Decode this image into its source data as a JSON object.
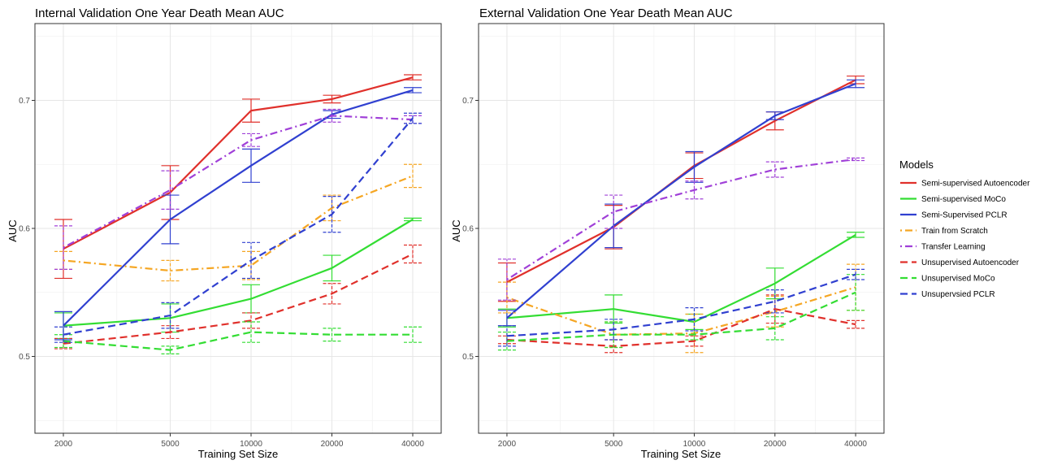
{
  "legend": {
    "title": "Models",
    "entries": [
      {
        "name": "Semi-supervised Autoencoder",
        "color": "#e0302b",
        "dash": "solid"
      },
      {
        "name": "Semi-supervised MoCo",
        "color": "#33dd33",
        "dash": "solid"
      },
      {
        "name": "Semi-Supervised PCLR",
        "color": "#3040d0",
        "dash": "solid"
      },
      {
        "name": "Train from Scratch",
        "color": "#f5a623",
        "dash": "dotdash"
      },
      {
        "name": "Transfer Learning",
        "color": "#a040d8",
        "dash": "dotdash"
      },
      {
        "name": "Unsupervised Autoencoder",
        "color": "#e0302b",
        "dash": "dashed"
      },
      {
        "name": "Unsupervised MoCo",
        "color": "#33dd33",
        "dash": "dashed"
      },
      {
        "name": "Unsupervsied PCLR",
        "color": "#3040d0",
        "dash": "dashed"
      }
    ]
  },
  "chart_data": [
    {
      "type": "line",
      "title": "Internal Validation One Year Death Mean AUC",
      "xlabel": "Training Set Size",
      "ylabel": "AUC",
      "x_scale": "log",
      "categories": [
        "2000",
        "5000",
        "10000",
        "20000",
        "40000"
      ],
      "x": [
        2000,
        5000,
        10000,
        20000,
        40000
      ],
      "ylim": [
        0.44,
        0.76
      ],
      "yticks": [
        "0.5",
        "0.6",
        "0.7"
      ],
      "grid": true,
      "series": [
        {
          "name": "Semi-supervised Autoencoder",
          "values": [
            0.584,
            0.628,
            0.692,
            0.701,
            0.718
          ],
          "err": [
            0.023,
            0.021,
            0.009,
            0.003,
            0.002
          ]
        },
        {
          "name": "Semi-supervised MoCo",
          "values": [
            0.524,
            0.53,
            0.545,
            0.569,
            0.607
          ],
          "err": [
            0.01,
            0.011,
            0.011,
            0.01,
            0.001
          ]
        },
        {
          "name": "Semi-Supervised PCLR",
          "values": [
            0.524,
            0.607,
            0.649,
            0.689,
            0.708
          ],
          "err": [
            0.011,
            0.019,
            0.013,
            0.003,
            0.002
          ]
        },
        {
          "name": "Train from Scratch",
          "values": [
            0.575,
            0.567,
            0.571,
            0.616,
            0.641
          ],
          "err": [
            0.007,
            0.008,
            0.011,
            0.01,
            0.009
          ]
        },
        {
          "name": "Transfer Learning",
          "values": [
            0.585,
            0.63,
            0.669,
            0.688,
            0.685
          ],
          "err": [
            0.017,
            0.015,
            0.005,
            0.005,
            0.003
          ]
        },
        {
          "name": "Unsupervised Autoencoder",
          "values": [
            0.51,
            0.519,
            0.528,
            0.549,
            0.58
          ],
          "err": [
            0.004,
            0.005,
            0.006,
            0.008,
            0.007
          ]
        },
        {
          "name": "Unsupervised MoCo",
          "values": [
            0.512,
            0.505,
            0.519,
            0.517,
            0.517
          ],
          "err": [
            0.005,
            0.003,
            0.008,
            0.005,
            0.006
          ]
        },
        {
          "name": "Unsupervsied PCLR",
          "values": [
            0.517,
            0.532,
            0.575,
            0.611,
            0.686
          ],
          "err": [
            0.006,
            0.01,
            0.014,
            0.014,
            0.004
          ]
        }
      ]
    },
    {
      "type": "line",
      "title": "External Validation One Year Death Mean AUC",
      "xlabel": "Training Set Size",
      "ylabel": "AUC",
      "x_scale": "log",
      "categories": [
        "2000",
        "5000",
        "10000",
        "20000",
        "40000"
      ],
      "x": [
        2000,
        5000,
        10000,
        20000,
        40000
      ],
      "ylim": [
        0.44,
        0.76
      ],
      "yticks": [
        "0.5",
        "0.6",
        "0.7"
      ],
      "grid": true,
      "series": [
        {
          "name": "Semi-supervised Autoencoder",
          "values": [
            0.558,
            0.601,
            0.649,
            0.684,
            0.716
          ],
          "err": [
            0.015,
            0.017,
            0.01,
            0.007,
            0.003
          ]
        },
        {
          "name": "Semi-supervised MoCo",
          "values": [
            0.53,
            0.537,
            0.527,
            0.557,
            0.595
          ],
          "err": [
            0.007,
            0.011,
            0.006,
            0.012,
            0.002
          ]
        },
        {
          "name": "Semi-Supervised PCLR",
          "values": [
            0.53,
            0.602,
            0.648,
            0.688,
            0.713
          ],
          "err": [
            0.006,
            0.017,
            0.012,
            0.003,
            0.003
          ]
        },
        {
          "name": "Train from Scratch",
          "values": [
            0.546,
            0.517,
            0.518,
            0.535,
            0.554
          ],
          "err": [
            0.012,
            0.01,
            0.015,
            0.012,
            0.018
          ]
        },
        {
          "name": "Transfer Learning",
          "values": [
            0.56,
            0.613,
            0.63,
            0.646,
            0.654
          ],
          "err": [
            0.016,
            0.013,
            0.007,
            0.006,
            0.001
          ]
        },
        {
          "name": "Unsupervised Autoencoder",
          "values": [
            0.513,
            0.508,
            0.512,
            0.537,
            0.525
          ],
          "err": [
            0.003,
            0.005,
            0.004,
            0.011,
            0.003
          ]
        },
        {
          "name": "Unsupervised MoCo",
          "values": [
            0.512,
            0.517,
            0.517,
            0.522,
            0.55
          ],
          "err": [
            0.007,
            0.01,
            0.004,
            0.009,
            0.014
          ]
        },
        {
          "name": "Unsupervsied PCLR",
          "values": [
            0.516,
            0.521,
            0.529,
            0.543,
            0.564
          ],
          "err": [
            0.008,
            0.008,
            0.009,
            0.009,
            0.004
          ]
        }
      ]
    }
  ]
}
